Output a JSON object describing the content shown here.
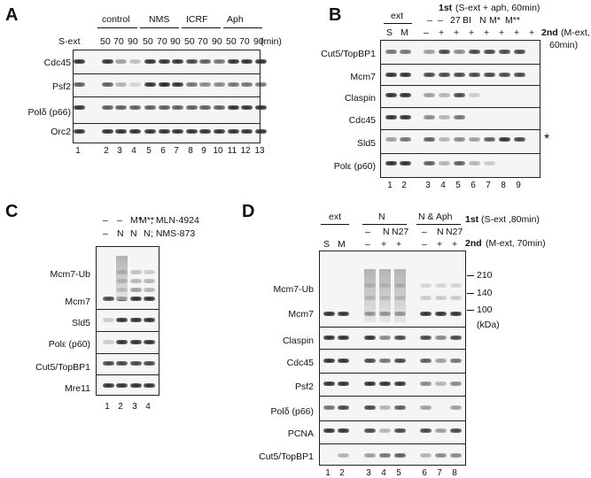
{
  "A": {
    "letter": "A",
    "sext": "S-ext",
    "groups": [
      "control",
      "NMS",
      "ICRF",
      "Aph"
    ],
    "times": [
      "50",
      "70",
      "90",
      "50",
      "70",
      "90",
      "50",
      "70",
      "90",
      "50",
      "70",
      "90"
    ],
    "unit": "(min)",
    "rows": [
      "Cdc45",
      "Psf2",
      "Polδ (p66)",
      "Orc2"
    ],
    "lanes": [
      "1",
      "2",
      "3",
      "4",
      "5",
      "6",
      "7",
      "8",
      "9",
      "10",
      "11",
      "12",
      "13"
    ]
  },
  "B": {
    "letter": "B",
    "ext": "ext",
    "s": "S",
    "m": "M",
    "first": "1st",
    "first_desc": "(S-ext + aph, 60min)",
    "second": "2nd",
    "second_desc": "(M-ext,",
    "second_desc2": "60min)",
    "top": [
      "–",
      "–",
      "27",
      "BI",
      "N",
      "M*",
      "M**"
    ],
    "plus": [
      "–",
      "+",
      "+",
      "+",
      "+",
      "+",
      "+",
      "+"
    ],
    "rows": [
      "Cut5/TopBP1",
      "Mcm7",
      "Claspin",
      "Cdc45",
      "Sld5",
      "Polε (p60)"
    ],
    "star": "*",
    "lanes": [
      "1",
      "2",
      "3",
      "4",
      "5",
      "6",
      "7",
      "8",
      "9"
    ]
  },
  "C": {
    "letter": "C",
    "row1": [
      "–",
      "–",
      "M*",
      "M**"
    ],
    "row1_label": "; MLN-4924",
    "row2": [
      "–",
      "N",
      "N",
      "N"
    ],
    "row2_label": "; NMS-873",
    "rows": [
      "Mcm7-Ub",
      "Mcm7",
      "Sld5",
      "Polε (p60)",
      "Cut5/TopBP1",
      "Mre11"
    ],
    "lanes": [
      "1",
      "2",
      "3",
      "4"
    ]
  },
  "D": {
    "letter": "D",
    "ext": "ext",
    "s": "S",
    "m": "M",
    "groupN": "N",
    "groupNAph": "N & Aph",
    "first": "1st",
    "first_desc": "(S-ext ,80min)",
    "second": "2nd",
    "second_desc": "(M-ext, 70min)",
    "top": [
      "–",
      "N",
      "N27",
      "–",
      "N",
      "N27"
    ],
    "plus": [
      "–",
      "+",
      "+",
      "–",
      "+",
      "+"
    ],
    "rows": [
      "Mcm7-Ub",
      "Mcm7",
      "Claspin",
      "Cdc45",
      "Psf2",
      "Polδ (p66)",
      "PCNA",
      "Cut5/TopBP1"
    ],
    "markers": [
      "210",
      "140",
      "100"
    ],
    "kda": "(kDa)",
    "lanes": [
      "1",
      "2",
      "3",
      "4",
      "5",
      "6",
      "7",
      "8"
    ]
  }
}
